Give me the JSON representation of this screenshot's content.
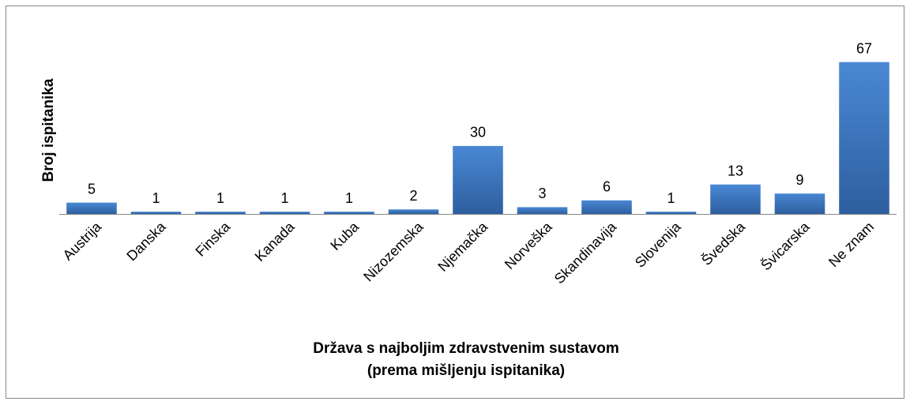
{
  "chart_data": {
    "type": "bar",
    "ylabel": "Broj ispitanika",
    "xlabel": [
      "Država s najboljim zdravstvenim sustavom",
      "(prema mišljenju ispitanika)"
    ],
    "categories": [
      "Austrija",
      "Danska",
      "Finska",
      "Kanada",
      "Kuba",
      "Nizozemska",
      "Njemačka",
      "Norveška",
      "Skandinavija",
      "Slovenija",
      "Švedska",
      "Švicarska",
      "Ne znam"
    ],
    "values": [
      5,
      1,
      1,
      1,
      1,
      2,
      30,
      3,
      6,
      1,
      13,
      9,
      67
    ],
    "color": "#3d78c2",
    "ylim": [
      0,
      70
    ]
  }
}
